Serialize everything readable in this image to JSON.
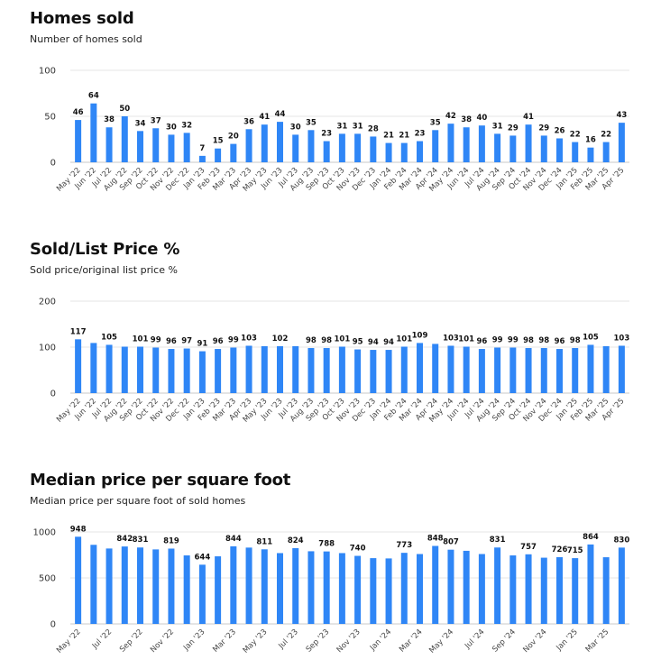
{
  "chart_data": [
    {
      "type": "bar",
      "title": "Homes sold",
      "subtitle": "Number of homes sold",
      "ylim": [
        0,
        100
      ],
      "yticks": [
        0,
        50,
        100
      ],
      "grid": true,
      "color": "#2f86f6",
      "categories": [
        "May '22",
        "Jun '22",
        "Jul '22",
        "Aug '22",
        "Sep '22",
        "Oct '22",
        "Nov '22",
        "Dec '22",
        "Jan '23",
        "Feb '23",
        "Mar '23",
        "Apr '23",
        "May '23",
        "Jun '23",
        "Jul '23",
        "Aug '23",
        "Sep '23",
        "Oct '23",
        "Nov '23",
        "Dec '23",
        "Jan '24",
        "Feb '24",
        "Mar '24",
        "Apr '24",
        "May '24",
        "Jun '24",
        "Jul '24",
        "Aug '24",
        "Sep '24",
        "Oct '24",
        "Nov '24",
        "Dec '24",
        "Jan '25",
        "Feb '25",
        "Mar '25",
        "Apr '25"
      ],
      "values": [
        46,
        64,
        38,
        50,
        34,
        37,
        30,
        32,
        7,
        15,
        20,
        36,
        41,
        44,
        30,
        35,
        23,
        31,
        31,
        28,
        21,
        21,
        23,
        35,
        42,
        38,
        40,
        31,
        29,
        41,
        29,
        26,
        22,
        16,
        22,
        43
      ],
      "data_labels": [
        46,
        64,
        38,
        50,
        34,
        37,
        30,
        32,
        7,
        15,
        20,
        36,
        41,
        44,
        30,
        35,
        23,
        31,
        31,
        28,
        21,
        21,
        23,
        35,
        42,
        38,
        40,
        31,
        29,
        41,
        29,
        26,
        22,
        16,
        22,
        43
      ],
      "tick_labels": [
        "May '22",
        "Jun '22",
        "Jul '22",
        "Aug '22",
        "Sep '22",
        "Oct '22",
        "Nov '22",
        "Dec '22",
        "Jan '23",
        "Feb '23",
        "Mar '23",
        "Apr '23",
        "May '23",
        "Jun '23",
        "Jul '23",
        "Aug '23",
        "Sep '23",
        "Oct '23",
        "Nov '23",
        "Dec '23",
        "Jan '24",
        "Feb '24",
        "Mar '24",
        "Apr '24",
        "May '24",
        "Jun '24",
        "Jul '24",
        "Aug '24",
        "Sep '24",
        "Oct '24",
        "Nov '24",
        "Dec '24",
        "Jan '25",
        "Feb '25",
        "Mar '25",
        "Apr '25"
      ]
    },
    {
      "type": "bar",
      "title": "Sold/List Price %",
      "subtitle": "Sold price/original list price %",
      "ylim": [
        0,
        200
      ],
      "yticks": [
        0,
        100,
        200
      ],
      "grid": true,
      "color": "#2f86f6",
      "categories": [
        "May '22",
        "Jun '22",
        "Jul '22",
        "Aug '22",
        "Sep '22",
        "Oct '22",
        "Nov '22",
        "Dec '22",
        "Jan '23",
        "Feb '23",
        "Mar '23",
        "Apr '23",
        "May '23",
        "Jun '23",
        "Jul '23",
        "Aug '23",
        "Sep '23",
        "Oct '23",
        "Nov '23",
        "Dec '23",
        "Jan '24",
        "Feb '24",
        "Mar '24",
        "Apr '24",
        "May '24",
        "Jun '24",
        "Jul '24",
        "Aug '24",
        "Sep '24",
        "Oct '24",
        "Nov '24",
        "Dec '24",
        "Jan '25",
        "Feb '25",
        "Mar '25",
        "Apr '25"
      ],
      "values": [
        117,
        109,
        105,
        101,
        101,
        99,
        96,
        97,
        91,
        96,
        99,
        103,
        102,
        102,
        102,
        98,
        98,
        101,
        95,
        94,
        94,
        101,
        109,
        107,
        103,
        101,
        96,
        99,
        99,
        98,
        98,
        96,
        98,
        105,
        102,
        103
      ],
      "data_labels": [
        117,
        null,
        105,
        null,
        101,
        99,
        96,
        97,
        91,
        96,
        99,
        103,
        null,
        102,
        null,
        98,
        98,
        101,
        95,
        94,
        94,
        101,
        109,
        null,
        103,
        101,
        96,
        99,
        99,
        98,
        98,
        96,
        98,
        105,
        null,
        103
      ],
      "tick_labels": [
        "May '22",
        "Jun '22",
        "Jul '22",
        "Aug '22",
        "Sep '22",
        "Oct '22",
        "Nov '22",
        "Dec '22",
        "Jan '23",
        "Feb '23",
        "Mar '23",
        "Apr '23",
        "May '23",
        "Jun '23",
        "Jul '23",
        "Aug '23",
        "Sep '23",
        "Oct '23",
        "Nov '23",
        "Dec '23",
        "Jan '24",
        "Feb '24",
        "Mar '24",
        "Apr '24",
        "May '24",
        "Jun '24",
        "Jul '24",
        "Aug '24",
        "Sep '24",
        "Oct '24",
        "Nov '24",
        "Dec '24",
        "Jan '25",
        "Feb '25",
        "Mar '25",
        "Apr '25"
      ]
    },
    {
      "type": "bar",
      "title": "Median price per square foot",
      "subtitle": "Median price per square foot of sold homes",
      "ylim": [
        0,
        1000
      ],
      "yticks": [
        0,
        500,
        1000
      ],
      "grid": true,
      "color": "#2f86f6",
      "categories": [
        "May '22",
        "Jun '22",
        "Jul '22",
        "Aug '22",
        "Sep '22",
        "Oct '22",
        "Nov '22",
        "Dec '22",
        "Jan '23",
        "Feb '23",
        "Mar '23",
        "Apr '23",
        "May '23",
        "Jun '23",
        "Jul '23",
        "Aug '23",
        "Sep '23",
        "Oct '23",
        "Nov '23",
        "Dec '23",
        "Jan '24",
        "Feb '24",
        "Mar '24",
        "Apr '24",
        "May '24",
        "Jun '24",
        "Jul '24",
        "Aug '24",
        "Sep '24",
        "Oct '24",
        "Nov '24",
        "Dec '24",
        "Jan '25",
        "Feb '25",
        "Mar '25",
        "Apr '25"
      ],
      "values": [
        948,
        860,
        820,
        842,
        831,
        810,
        819,
        745,
        644,
        735,
        844,
        830,
        811,
        770,
        824,
        790,
        788,
        770,
        740,
        715,
        712,
        773,
        760,
        848,
        807,
        795,
        760,
        831,
        745,
        757,
        720,
        726,
        715,
        864,
        725,
        830
      ],
      "data_labels": [
        948,
        null,
        null,
        842,
        831,
        null,
        819,
        null,
        644,
        null,
        844,
        null,
        811,
        null,
        824,
        null,
        788,
        null,
        740,
        null,
        null,
        773,
        null,
        848,
        807,
        null,
        null,
        831,
        null,
        757,
        null,
        726,
        715,
        864,
        null,
        830
      ],
      "tick_labels": [
        "May '22",
        "",
        "Jul '22",
        "",
        "Sep '22",
        "",
        "Nov '22",
        "",
        "Jan '23",
        "",
        "Mar '23",
        "",
        "May '23",
        "",
        "Jul '23",
        "",
        "Sep '23",
        "",
        "Nov '23",
        "",
        "Jan '24",
        "",
        "Mar '24",
        "",
        "May '24",
        "",
        "Jul '24",
        "",
        "Sep '24",
        "",
        "Nov '24",
        "",
        "Jan '25",
        "",
        "Mar '25",
        ""
      ]
    }
  ]
}
